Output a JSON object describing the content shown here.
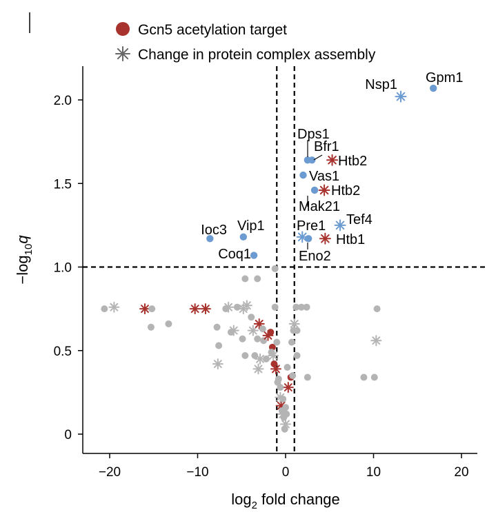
{
  "chart_data": {
    "type": "scatter",
    "title": "",
    "xlabel": "log2 fold change",
    "ylabel": "-log10q",
    "xlim": [
      -23,
      23
    ],
    "ylim": [
      -0.12,
      2.2
    ],
    "xticks": [
      -20,
      -10,
      0,
      10,
      20
    ],
    "xtick_labels": [
      "−20",
      "−10",
      "0",
      "10",
      "20"
    ],
    "yticks": [
      0,
      0.5,
      1.0,
      1.5,
      2.0
    ],
    "ytick_labels": [
      "0",
      "0.5",
      "1.0",
      "1.5",
      "2.0"
    ],
    "thresholds": {
      "fold_change": [
        -1,
        1
      ],
      "q_value": 1.0
    },
    "legend": [
      {
        "name": "Gcn5 acetylation target",
        "marker": "circle",
        "color": "#a8322d"
      },
      {
        "name": "Change in protein complex assembly",
        "marker": "asterisk",
        "color": "#666666"
      }
    ],
    "colors": {
      "significant": "#6b9bd1",
      "not_significant": "#b4b4b4",
      "acetylation_target": "#a8322d"
    },
    "significant_points": [
      {
        "label": "Nsp1",
        "x": 13.1,
        "y": 2.02,
        "marker": "asterisk",
        "color": "#6b9bd1"
      },
      {
        "label": "Gpm1",
        "x": 16.8,
        "y": 2.07,
        "marker": "circle",
        "color": "#6b9bd1"
      },
      {
        "label": "Dps1",
        "x": 2.5,
        "y": 1.64,
        "marker": "circle",
        "color": "#6b9bd1"
      },
      {
        "label": "Bfr1",
        "x": 3.0,
        "y": 1.64,
        "marker": "circle",
        "color": "#6b9bd1"
      },
      {
        "label": "Htb2",
        "x": 5.3,
        "y": 1.64,
        "marker": "asterisk",
        "color": "#a8322d"
      },
      {
        "label": "Vas1",
        "x": 2.0,
        "y": 1.55,
        "marker": "circle",
        "color": "#6b9bd1"
      },
      {
        "label": "Mak21",
        "x": 3.3,
        "y": 1.46,
        "marker": "circle",
        "color": "#6b9bd1"
      },
      {
        "label": "Htb2",
        "x": 4.4,
        "y": 1.46,
        "marker": "asterisk",
        "color": "#a8322d"
      },
      {
        "label": "Tef4",
        "x": 6.2,
        "y": 1.25,
        "marker": "asterisk",
        "color": "#6b9bd1"
      },
      {
        "label": "Pre1",
        "x": 1.9,
        "y": 1.18,
        "marker": "asterisk",
        "color": "#6b9bd1"
      },
      {
        "label": "Eno2",
        "x": 2.6,
        "y": 1.17,
        "marker": "circle",
        "color": "#6b9bd1"
      },
      {
        "label": "Htb1",
        "x": 4.5,
        "y": 1.17,
        "marker": "asterisk",
        "color": "#a8322d"
      },
      {
        "label": "Ioc3",
        "x": -8.6,
        "y": 1.17,
        "marker": "circle",
        "color": "#6b9bd1"
      },
      {
        "label": "Vip1",
        "x": -4.8,
        "y": 1.18,
        "marker": "circle",
        "color": "#6b9bd1"
      },
      {
        "label": "Coq1",
        "x": -3.6,
        "y": 1.07,
        "marker": "circle",
        "color": "#6b9bd1"
      }
    ],
    "other_points": [
      {
        "x": -20.6,
        "y": 0.75,
        "m": "c",
        "k": "g"
      },
      {
        "x": -19.5,
        "y": 0.76,
        "m": "s",
        "k": "g"
      },
      {
        "x": -16.0,
        "y": 0.75,
        "m": "s",
        "k": "r"
      },
      {
        "x": -15.2,
        "y": 0.75,
        "m": "c",
        "k": "g"
      },
      {
        "x": -15.3,
        "y": 0.64,
        "m": "c",
        "k": "g"
      },
      {
        "x": -13.3,
        "y": 0.66,
        "m": "c",
        "k": "g"
      },
      {
        "x": -10.3,
        "y": 0.75,
        "m": "s",
        "k": "r"
      },
      {
        "x": -9.1,
        "y": 0.75,
        "m": "s",
        "k": "r"
      },
      {
        "x": -7.8,
        "y": 0.64,
        "m": "c",
        "k": "g"
      },
      {
        "x": -7.6,
        "y": 0.53,
        "m": "c",
        "k": "g"
      },
      {
        "x": -7.7,
        "y": 0.42,
        "m": "s",
        "k": "g"
      },
      {
        "x": -6.8,
        "y": 0.75,
        "m": "c",
        "k": "g"
      },
      {
        "x": -6.5,
        "y": 0.76,
        "m": "s",
        "k": "g"
      },
      {
        "x": -6.2,
        "y": 0.61,
        "m": "c",
        "k": "g"
      },
      {
        "x": -5.9,
        "y": 0.62,
        "m": "s",
        "k": "g"
      },
      {
        "x": -5.5,
        "y": 0.76,
        "m": "c",
        "k": "g"
      },
      {
        "x": -4.8,
        "y": 0.75,
        "m": "s",
        "k": "g"
      },
      {
        "x": -4.4,
        "y": 0.77,
        "m": "s",
        "k": "g"
      },
      {
        "x": -4.9,
        "y": 0.57,
        "m": "c",
        "k": "g"
      },
      {
        "x": -4.6,
        "y": 0.47,
        "m": "c",
        "k": "g"
      },
      {
        "x": -4.6,
        "y": 0.93,
        "m": "c",
        "k": "g"
      },
      {
        "x": -3.2,
        "y": 0.93,
        "m": "c",
        "k": "g"
      },
      {
        "x": -3.9,
        "y": 0.7,
        "m": "c",
        "k": "g"
      },
      {
        "x": -3.7,
        "y": 0.62,
        "m": "s",
        "k": "g"
      },
      {
        "x": -3.5,
        "y": 0.47,
        "m": "c",
        "k": "g"
      },
      {
        "x": -3.2,
        "y": 0.57,
        "m": "c",
        "k": "g"
      },
      {
        "x": -3.0,
        "y": 0.66,
        "m": "s",
        "k": "r"
      },
      {
        "x": -2.9,
        "y": 0.45,
        "m": "s",
        "k": "g"
      },
      {
        "x": -2.6,
        "y": 0.63,
        "m": "c",
        "k": "g"
      },
      {
        "x": -2.5,
        "y": 0.56,
        "m": "c",
        "k": "g"
      },
      {
        "x": -3.1,
        "y": 0.39,
        "m": "s",
        "k": "g"
      },
      {
        "x": -2.2,
        "y": 0.45,
        "m": "c",
        "k": "g"
      },
      {
        "x": -2.0,
        "y": 0.59,
        "m": "s",
        "k": "r"
      },
      {
        "x": -1.7,
        "y": 0.61,
        "m": "c",
        "k": "r"
      },
      {
        "x": -1.5,
        "y": 0.52,
        "m": "c",
        "k": "r"
      },
      {
        "x": -1.4,
        "y": 0.47,
        "m": "s",
        "k": "g"
      },
      {
        "x": -1.3,
        "y": 0.42,
        "m": "c",
        "k": "r"
      },
      {
        "x": -1.1,
        "y": 0.39,
        "m": "s",
        "k": "r"
      },
      {
        "x": -1.2,
        "y": 0.76,
        "m": "c",
        "k": "g"
      },
      {
        "x": -1.2,
        "y": 0.99,
        "m": "c",
        "k": "g"
      },
      {
        "x": -1.0,
        "y": 0.55,
        "m": "c",
        "k": "g"
      },
      {
        "x": -0.9,
        "y": 0.31,
        "m": "c",
        "k": "g"
      },
      {
        "x": -0.8,
        "y": 0.33,
        "m": "c",
        "k": "g"
      },
      {
        "x": -0.6,
        "y": 0.22,
        "m": "s",
        "k": "g"
      },
      {
        "x": -0.5,
        "y": 0.17,
        "m": "s",
        "k": "r"
      },
      {
        "x": -0.4,
        "y": 0.14,
        "m": "c",
        "k": "g"
      },
      {
        "x": -0.3,
        "y": 0.12,
        "m": "s",
        "k": "g"
      },
      {
        "x": -0.2,
        "y": 0.1,
        "m": "c",
        "k": "g"
      },
      {
        "x": 0.0,
        "y": 0.16,
        "m": "c",
        "k": "g"
      },
      {
        "x": 0.1,
        "y": 0.12,
        "m": "c",
        "k": "g"
      },
      {
        "x": 0.0,
        "y": 0.06,
        "m": "s",
        "k": "g"
      },
      {
        "x": -0.1,
        "y": 0.03,
        "m": "c",
        "k": "g"
      },
      {
        "x": 0.3,
        "y": 0.28,
        "m": "s",
        "k": "r"
      },
      {
        "x": 0.6,
        "y": 0.34,
        "m": "c",
        "k": "r"
      },
      {
        "x": 0.8,
        "y": 0.35,
        "m": "c",
        "k": "g"
      },
      {
        "x": 0.7,
        "y": 0.55,
        "m": "c",
        "k": "g"
      },
      {
        "x": 0.9,
        "y": 0.62,
        "m": "c",
        "k": "g"
      },
      {
        "x": 1.0,
        "y": 0.66,
        "m": "s",
        "k": "g"
      },
      {
        "x": 1.3,
        "y": 0.47,
        "m": "c",
        "k": "g"
      },
      {
        "x": 1.3,
        "y": 0.62,
        "m": "c",
        "k": "g"
      },
      {
        "x": 1.2,
        "y": 0.76,
        "m": "c",
        "k": "g"
      },
      {
        "x": 1.8,
        "y": 0.76,
        "m": "c",
        "k": "g"
      },
      {
        "x": 2.4,
        "y": 0.76,
        "m": "c",
        "k": "g"
      },
      {
        "x": 2.5,
        "y": 0.34,
        "m": "c",
        "k": "g"
      },
      {
        "x": 8.9,
        "y": 0.34,
        "m": "c",
        "k": "g"
      },
      {
        "x": 10.1,
        "y": 0.34,
        "m": "c",
        "k": "g"
      },
      {
        "x": 10.3,
        "y": 0.56,
        "m": "s",
        "k": "g"
      },
      {
        "x": 10.4,
        "y": 0.75,
        "m": "c",
        "k": "g"
      },
      {
        "x": -1.6,
        "y": 0.49,
        "m": "c",
        "k": "g"
      },
      {
        "x": -0.3,
        "y": 0.21,
        "m": "c",
        "k": "g"
      },
      {
        "x": 0.2,
        "y": 0.4,
        "m": "c",
        "k": "g"
      },
      {
        "x": -0.6,
        "y": 0.28,
        "m": "c",
        "k": "g"
      }
    ]
  }
}
